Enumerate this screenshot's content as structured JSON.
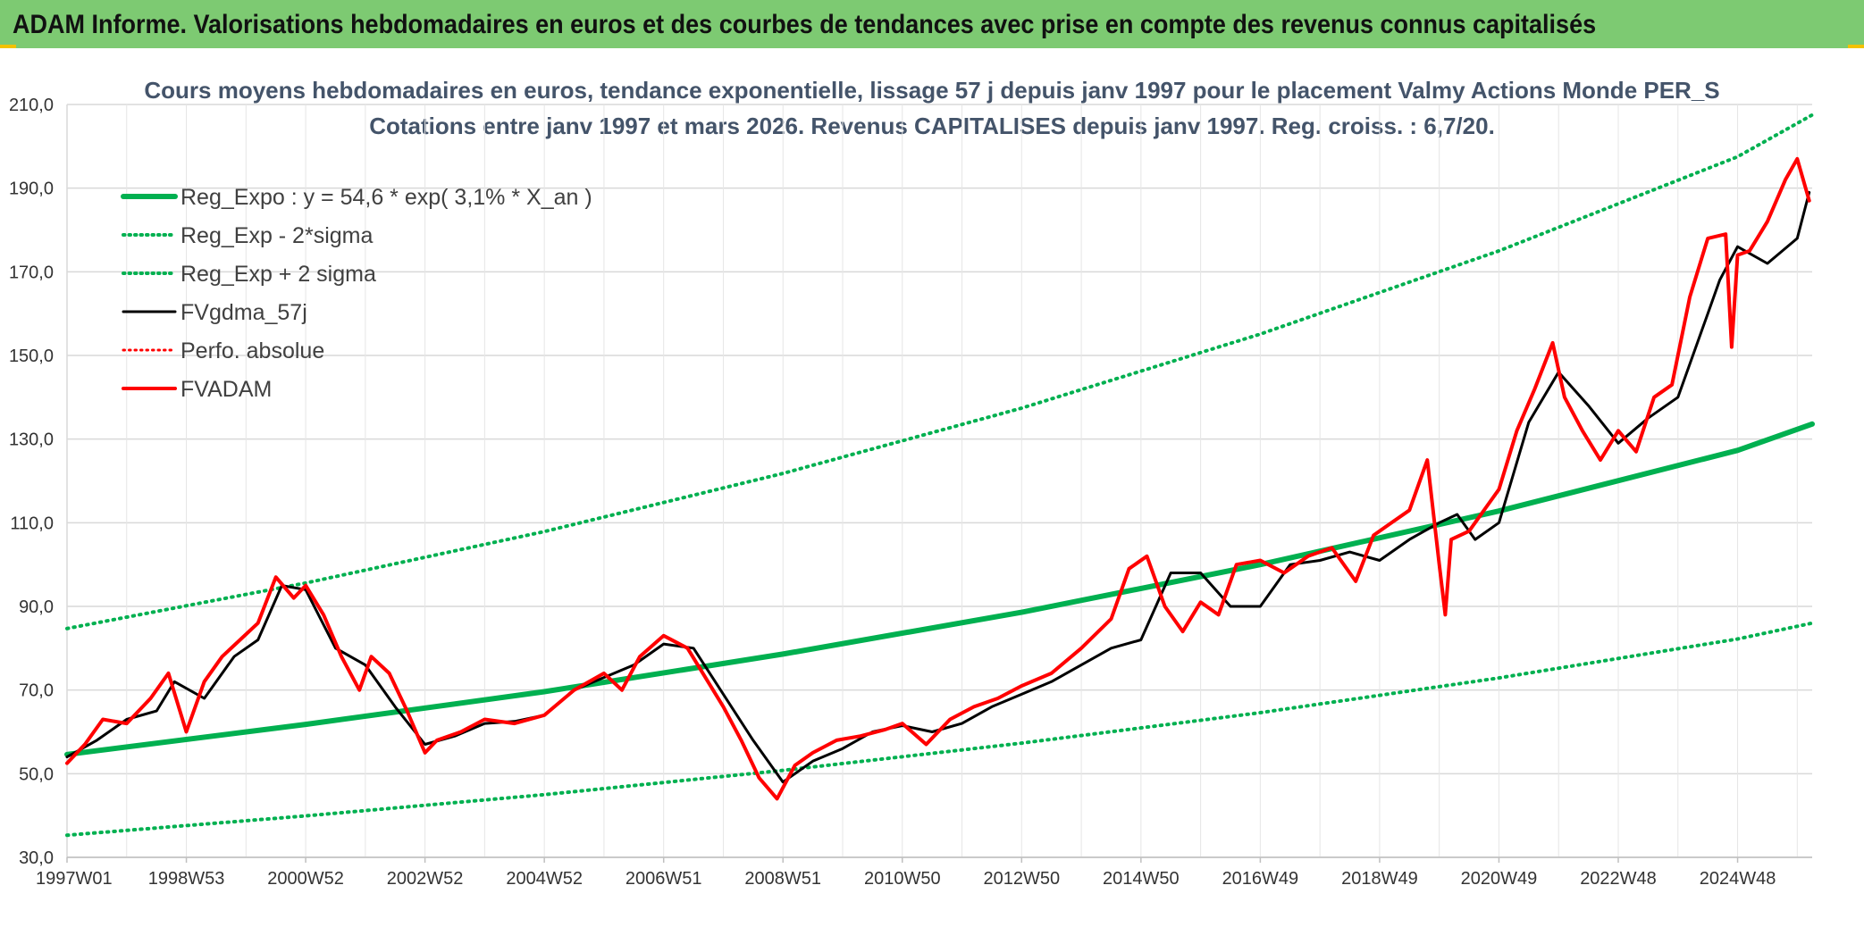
{
  "header": {
    "title": "ADAM Informe. Valorisations hebdomadaires en euros et des courbes de tendances avec prise en compte des revenus connus capitalisés",
    "band_color": "#7dca72"
  },
  "chart_data": {
    "type": "line",
    "title": "Cours moyens hebdomadaires en euros, tendance exponentielle, lissage 57 j depuis janv 1997 pour le placement Valmy Actions Monde PER_S",
    "subtitle": "Cotations entre janv 1997 et mars 2026. Revenus CAPITALISES depuis janv 1997. Reg. croiss. : 6,7/20.",
    "xlabel": "",
    "ylabel": "",
    "x_range": [
      "1997W01",
      "2026W13"
    ],
    "x_tick_labels": [
      "1997W01",
      "1998W53",
      "2000W52",
      "2002W52",
      "2004W52",
      "2006W51",
      "2008W51",
      "2010W50",
      "2012W50",
      "2014W50",
      "2016W49",
      "2018W49",
      "2020W49",
      "2022W48",
      "2024W48"
    ],
    "x_tick_years": [
      1997.0,
      1999.0,
      2001.0,
      2003.0,
      2005.0,
      2007.0,
      2009.0,
      2011.0,
      2013.0,
      2015.0,
      2017.0,
      2019.0,
      2021.0,
      2023.0,
      2025.0
    ],
    "ylim": [
      30,
      210
    ],
    "y_ticks": [
      30,
      50,
      70,
      90,
      110,
      130,
      150,
      170,
      190,
      210
    ],
    "y_tick_labels": [
      "30,0",
      "50,0",
      "70,0",
      "90,0",
      "110,0",
      "130,0",
      "150,0",
      "170,0",
      "190,0",
      "210,0"
    ],
    "grid": true,
    "legend_position": "top-left",
    "series": [
      {
        "name": "Reg_Expo : y = 54,6 * exp( 3,1% *  X_an )",
        "style": "solid",
        "width": 6,
        "color": "#00b050",
        "x": [
          1997.0,
          2001.0,
          2005.0,
          2009.0,
          2013.0,
          2017.0,
          2021.0,
          2025.0,
          2026.25
        ],
        "y": [
          54.6,
          61.8,
          69.6,
          78.6,
          88.6,
          100.0,
          112.8,
          127.3,
          133.6
        ]
      },
      {
        "name": "Reg_Exp - 2*sigma",
        "style": "dotted",
        "width": 4,
        "color": "#00b050",
        "x": [
          1997.0,
          2001.0,
          2005.0,
          2009.0,
          2013.0,
          2017.0,
          2021.0,
          2025.0,
          2026.25
        ],
        "y": [
          35.3,
          39.9,
          45.0,
          50.8,
          57.3,
          64.6,
          72.9,
          82.2,
          86.0
        ]
      },
      {
        "name": "Reg_Exp + 2 sigma",
        "style": "dotted",
        "width": 4,
        "color": "#00b050",
        "x": [
          1997.0,
          2001.0,
          2005.0,
          2009.0,
          2013.0,
          2017.0,
          2021.0,
          2025.0,
          2026.25
        ],
        "y": [
          84.7,
          95.6,
          107.9,
          121.8,
          137.4,
          155.1,
          175.0,
          197.5,
          207.5
        ]
      },
      {
        "name": "FVgdma_57j",
        "style": "solid",
        "width": 3,
        "color": "#000000",
        "x": [
          1997.0,
          1997.5,
          1998.0,
          1998.5,
          1998.8,
          1999.3,
          1999.8,
          2000.2,
          2000.6,
          2001.0,
          2001.5,
          2002.0,
          2002.5,
          2003.0,
          2003.5,
          2004.0,
          2004.5,
          2005.0,
          2005.5,
          2006.0,
          2006.5,
          2007.0,
          2007.5,
          2008.0,
          2008.5,
          2009.0,
          2009.5,
          2010.0,
          2010.5,
          2011.0,
          2011.5,
          2012.0,
          2012.5,
          2013.0,
          2013.5,
          2014.0,
          2014.5,
          2015.0,
          2015.5,
          2016.0,
          2016.5,
          2017.0,
          2017.5,
          2018.0,
          2018.5,
          2019.0,
          2019.5,
          2020.0,
          2020.3,
          2020.6,
          2021.0,
          2021.5,
          2022.0,
          2022.5,
          2023.0,
          2023.5,
          2024.0,
          2024.5,
          2024.7,
          2025.0,
          2025.5,
          2026.0,
          2026.2
        ],
        "y": [
          54.0,
          58.0,
          63.0,
          65.0,
          72.0,
          68.0,
          78.0,
          82.0,
          95.0,
          94.0,
          80.0,
          76.0,
          66.0,
          57.0,
          59.0,
          62.0,
          62.5,
          64.0,
          70.0,
          73.0,
          76.0,
          81.0,
          80.0,
          69.0,
          58.0,
          48.0,
          53.0,
          56.0,
          60.0,
          61.5,
          60.0,
          62.0,
          66.0,
          69.0,
          72.0,
          76.0,
          80.0,
          82.0,
          98.0,
          98.0,
          90.0,
          90.0,
          100.0,
          101.0,
          103.0,
          101.0,
          106.0,
          110.0,
          112.0,
          106.0,
          110.0,
          134.0,
          146.0,
          138.0,
          129.0,
          135.0,
          140.0,
          160.0,
          168.0,
          176.0,
          172.0,
          178.0,
          189.0
        ]
      },
      {
        "name": "Perfo. absolue",
        "style": "dotted",
        "width": 3,
        "color": "#ff0000",
        "x": [],
        "y": []
      },
      {
        "name": "FVADAM",
        "style": "solid",
        "width": 4,
        "color": "#ff0000",
        "x": [
          1997.0,
          1997.3,
          1997.6,
          1998.0,
          1998.4,
          1998.7,
          1999.0,
          1999.3,
          1999.6,
          1999.9,
          2000.2,
          2000.5,
          2000.8,
          2001.0,
          2001.3,
          2001.6,
          2001.9,
          2002.1,
          2002.4,
          2002.7,
          2003.0,
          2003.2,
          2003.6,
          2004.0,
          2004.5,
          2005.0,
          2005.5,
          2006.0,
          2006.3,
          2006.6,
          2007.0,
          2007.4,
          2007.7,
          2008.0,
          2008.3,
          2008.6,
          2008.9,
          2009.2,
          2009.5,
          2009.9,
          2010.3,
          2010.7,
          2011.0,
          2011.4,
          2011.8,
          2012.2,
          2012.6,
          2013.0,
          2013.5,
          2014.0,
          2014.5,
          2014.8,
          2015.1,
          2015.4,
          2015.7,
          2016.0,
          2016.3,
          2016.6,
          2017.0,
          2017.4,
          2017.8,
          2018.2,
          2018.6,
          2018.9,
          2019.2,
          2019.5,
          2019.8,
          2020.0,
          2020.1,
          2020.2,
          2020.5,
          2020.8,
          2021.0,
          2021.3,
          2021.6,
          2021.9,
          2022.1,
          2022.4,
          2022.7,
          2023.0,
          2023.3,
          2023.6,
          2023.9,
          2024.2,
          2024.5,
          2024.8,
          2024.9,
          2025.0,
          2025.2,
          2025.5,
          2025.8,
          2026.0,
          2026.2
        ],
        "y": [
          52.5,
          57.0,
          63.0,
          62.0,
          68.0,
          74.0,
          60.0,
          72.0,
          78.0,
          82.0,
          86.0,
          97.0,
          92.0,
          95.0,
          88.0,
          78.0,
          70.0,
          78.0,
          74.0,
          65.0,
          55.0,
          58.0,
          60.0,
          63.0,
          62.0,
          64.0,
          70.0,
          74.0,
          70.0,
          78.0,
          83.0,
          80.0,
          73.0,
          66.0,
          58.0,
          49.0,
          44.0,
          52.0,
          55.0,
          58.0,
          59.0,
          60.5,
          62.0,
          57.0,
          63.0,
          66.0,
          68.0,
          71.0,
          74.0,
          80.0,
          87.0,
          99.0,
          102.0,
          90.0,
          84.0,
          91.0,
          88.0,
          100.0,
          101.0,
          98.0,
          102.0,
          104.0,
          96.0,
          107.0,
          110.0,
          113.0,
          125.0,
          100.0,
          88.0,
          106.0,
          108.0,
          114.0,
          118.0,
          132.0,
          142.0,
          153.0,
          140.0,
          132.0,
          125.0,
          132.0,
          127.0,
          140.0,
          143.0,
          164.0,
          178.0,
          179.0,
          152.0,
          174.0,
          175.0,
          182.0,
          192.0,
          197.0,
          187.0
        ]
      }
    ]
  }
}
